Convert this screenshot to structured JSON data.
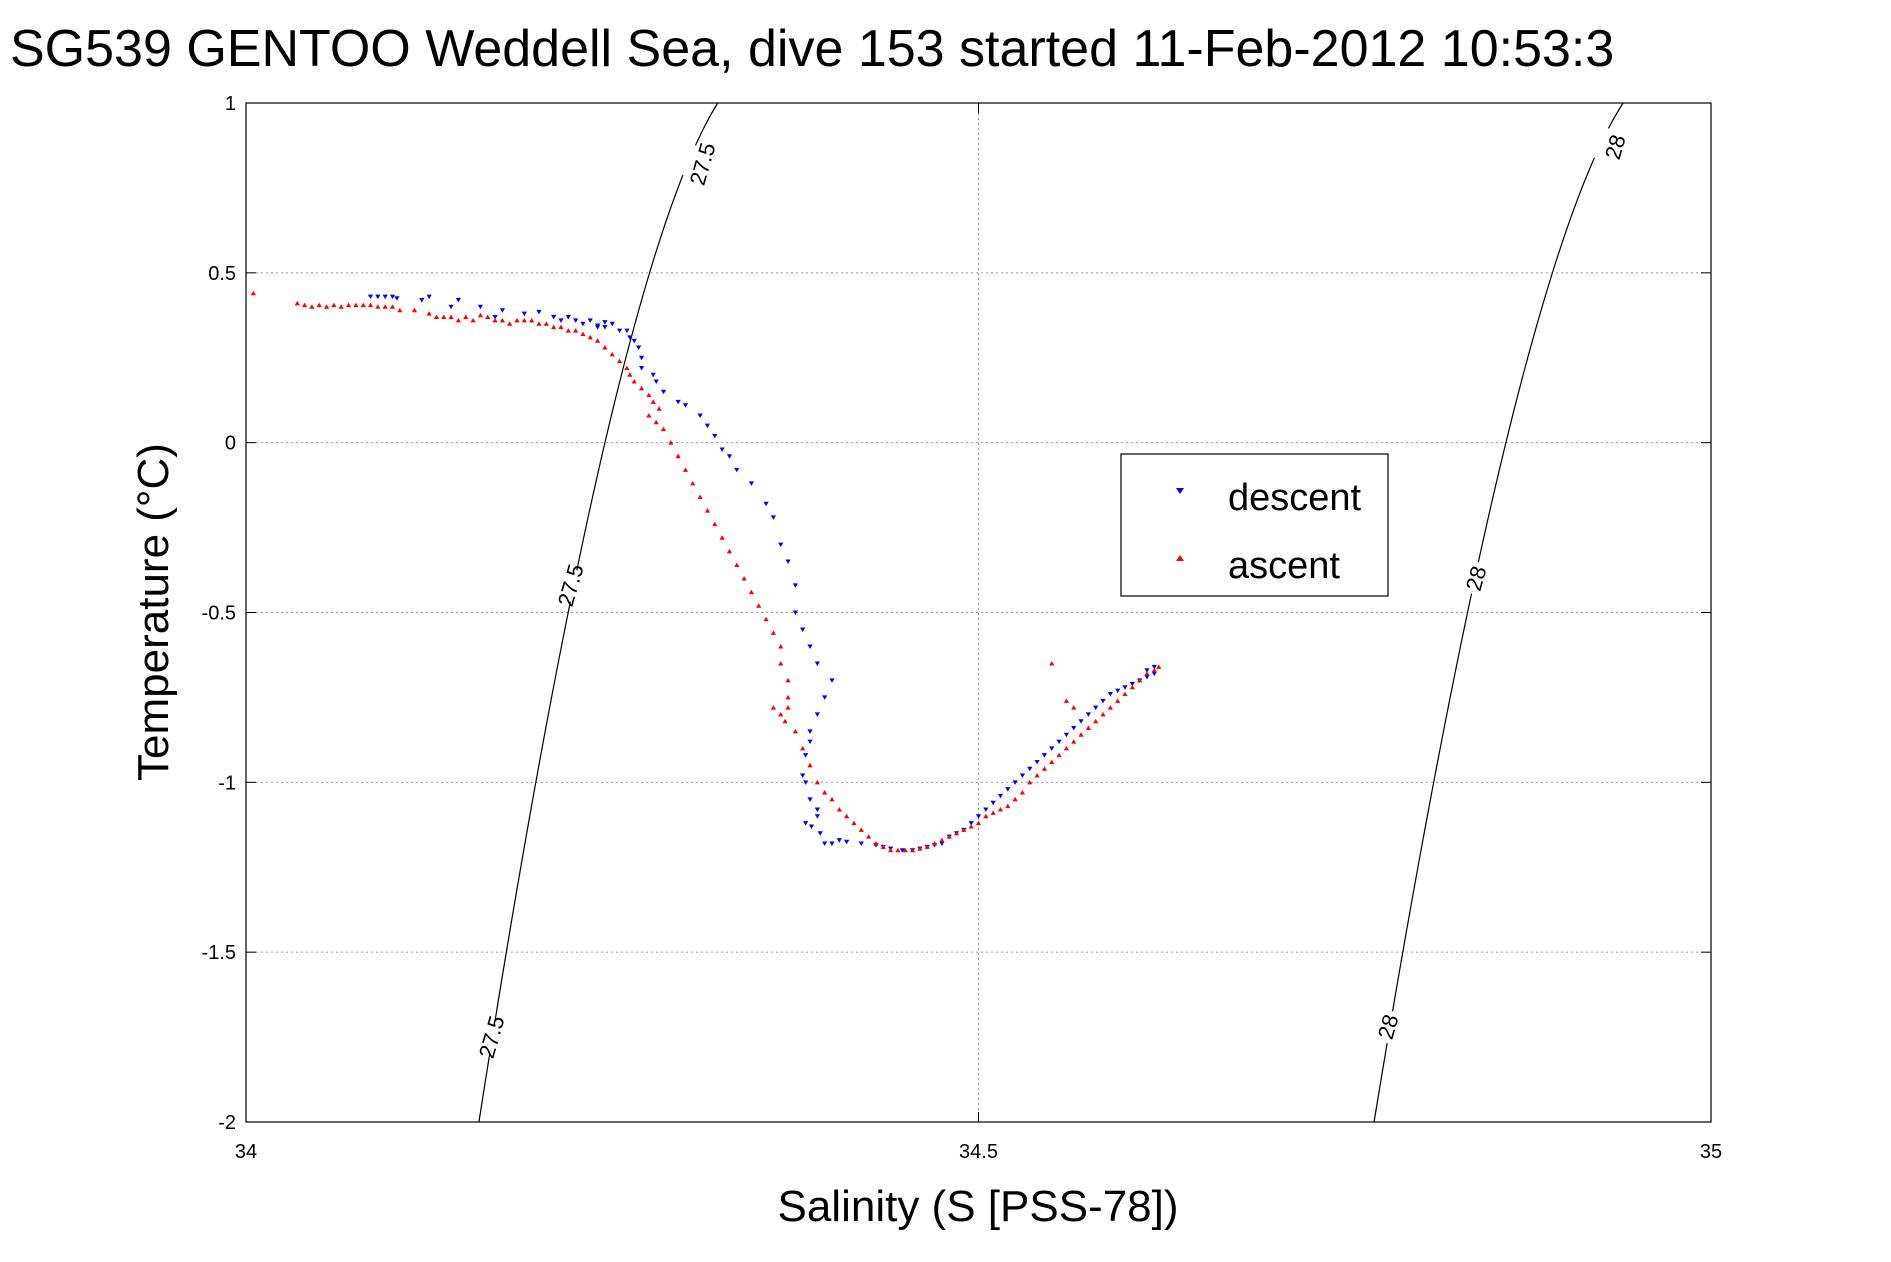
{
  "chart_data": {
    "type": "scatter",
    "title": "SG539 GENTOO Weddell Sea, dive 153 started 11-Feb-2012 10:53:3",
    "xlabel": "Salinity (S [PSS-78])",
    "ylabel": "Temperature (°C)",
    "xlim": [
      34,
      35
    ],
    "ylim": [
      -2,
      1
    ],
    "xticks": [
      34,
      34.5,
      35
    ],
    "xtick_labels": [
      "34",
      "34.5",
      "35"
    ],
    "yticks": [
      1,
      0.5,
      0,
      -0.5,
      -1,
      -1.5,
      -2
    ],
    "ytick_labels": [
      "1",
      "0.5",
      "0",
      "-0.5",
      "-1",
      "-1.5",
      "-2"
    ],
    "grid": true,
    "legend_position": "center-right",
    "series": [
      {
        "name": "descent",
        "color": "#0000ff",
        "marker": "triangle-down",
        "points": [
          [
            34.085,
            0.43
          ],
          [
            34.09,
            0.43
          ],
          [
            34.095,
            0.43
          ],
          [
            34.1,
            0.43
          ],
          [
            34.103,
            0.425
          ],
          [
            34.12,
            0.42
          ],
          [
            34.125,
            0.43
          ],
          [
            34.14,
            0.4
          ],
          [
            34.145,
            0.42
          ],
          [
            34.16,
            0.4
          ],
          [
            34.17,
            0.37
          ],
          [
            34.175,
            0.39
          ],
          [
            34.19,
            0.38
          ],
          [
            34.2,
            0.385
          ],
          [
            34.21,
            0.37
          ],
          [
            34.215,
            0.36
          ],
          [
            34.22,
            0.37
          ],
          [
            34.225,
            0.36
          ],
          [
            34.23,
            0.35
          ],
          [
            34.235,
            0.36
          ],
          [
            34.24,
            0.34
          ],
          [
            34.245,
            0.34
          ],
          [
            34.25,
            0.35
          ],
          [
            34.255,
            0.33
          ],
          [
            34.26,
            0.33
          ],
          [
            34.24,
            0.345
          ],
          [
            34.245,
            0.355
          ],
          [
            34.262,
            0.31
          ],
          [
            34.265,
            0.3
          ],
          [
            34.268,
            0.28
          ],
          [
            34.27,
            0.25
          ],
          [
            34.27,
            0.22
          ],
          [
            34.278,
            0.2
          ],
          [
            34.28,
            0.18
          ],
          [
            34.285,
            0.15
          ],
          [
            34.295,
            0.12
          ],
          [
            34.3,
            0.11
          ],
          [
            34.31,
            0.08
          ],
          [
            34.315,
            0.05
          ],
          [
            34.32,
            0.02
          ],
          [
            34.325,
            -0.02
          ],
          [
            34.33,
            -0.04
          ],
          [
            34.335,
            -0.08
          ],
          [
            34.345,
            -0.12
          ],
          [
            34.355,
            -0.18
          ],
          [
            34.36,
            -0.22
          ],
          [
            34.365,
            -0.3
          ],
          [
            34.37,
            -0.35
          ],
          [
            34.375,
            -0.42
          ],
          [
            34.375,
            -0.5
          ],
          [
            34.38,
            -0.55
          ],
          [
            34.385,
            -0.6
          ],
          [
            34.39,
            -0.65
          ],
          [
            34.4,
            -0.7
          ],
          [
            34.395,
            -0.75
          ],
          [
            34.39,
            -0.8
          ],
          [
            34.385,
            -0.85
          ],
          [
            34.385,
            -0.88
          ],
          [
            34.382,
            -0.92
          ],
          [
            34.38,
            -0.98
          ],
          [
            34.382,
            -1.0
          ],
          [
            34.385,
            -1.05
          ],
          [
            34.39,
            -1.08
          ],
          [
            34.39,
            -1.1
          ],
          [
            34.386,
            -1.13
          ],
          [
            34.382,
            -1.12
          ],
          [
            34.392,
            -1.15
          ],
          [
            34.395,
            -1.18
          ],
          [
            34.4,
            -1.18
          ],
          [
            34.405,
            -1.17
          ],
          [
            34.41,
            -1.175
          ],
          [
            34.42,
            -1.18
          ],
          [
            34.43,
            -1.185
          ],
          [
            34.435,
            -1.19
          ],
          [
            34.44,
            -1.195
          ],
          [
            34.448,
            -1.2
          ],
          [
            34.455,
            -1.2
          ],
          [
            34.46,
            -1.195
          ],
          [
            34.465,
            -1.19
          ],
          [
            34.47,
            -1.185
          ],
          [
            34.475,
            -1.18
          ],
          [
            34.48,
            -1.16
          ],
          [
            34.485,
            -1.15
          ],
          [
            34.49,
            -1.14
          ],
          [
            34.495,
            -1.12
          ],
          [
            34.5,
            -1.1
          ],
          [
            34.505,
            -1.08
          ],
          [
            34.51,
            -1.06
          ],
          [
            34.515,
            -1.04
          ],
          [
            34.52,
            -1.02
          ],
          [
            34.525,
            -1.0
          ],
          [
            34.53,
            -0.98
          ],
          [
            34.535,
            -0.96
          ],
          [
            34.54,
            -0.94
          ],
          [
            34.545,
            -0.92
          ],
          [
            34.55,
            -0.9
          ],
          [
            34.555,
            -0.88
          ],
          [
            34.56,
            -0.86
          ],
          [
            34.565,
            -0.84
          ],
          [
            34.57,
            -0.82
          ],
          [
            34.575,
            -0.8
          ],
          [
            34.58,
            -0.78
          ],
          [
            34.585,
            -0.76
          ],
          [
            34.59,
            -0.74
          ],
          [
            34.595,
            -0.73
          ],
          [
            34.6,
            -0.72
          ],
          [
            34.605,
            -0.71
          ],
          [
            34.61,
            -0.7
          ],
          [
            34.615,
            -0.69
          ],
          [
            34.62,
            -0.68
          ],
          [
            34.62,
            -0.66
          ],
          [
            34.615,
            -0.67
          ]
        ]
      },
      {
        "name": "ascent",
        "color": "#ff0000",
        "marker": "triangle-up",
        "points": [
          [
            34.005,
            0.44
          ],
          [
            34.035,
            0.41
          ],
          [
            34.04,
            0.405
          ],
          [
            34.045,
            0.4
          ],
          [
            34.05,
            0.405
          ],
          [
            34.055,
            0.4
          ],
          [
            34.06,
            0.405
          ],
          [
            34.065,
            0.4
          ],
          [
            34.07,
            0.405
          ],
          [
            34.075,
            0.405
          ],
          [
            34.08,
            0.405
          ],
          [
            34.085,
            0.405
          ],
          [
            34.09,
            0.4
          ],
          [
            34.095,
            0.4
          ],
          [
            34.1,
            0.4
          ],
          [
            34.105,
            0.39
          ],
          [
            34.115,
            0.39
          ],
          [
            34.125,
            0.38
          ],
          [
            34.13,
            0.37
          ],
          [
            34.135,
            0.37
          ],
          [
            34.14,
            0.37
          ],
          [
            34.145,
            0.36
          ],
          [
            34.15,
            0.37
          ],
          [
            34.155,
            0.36
          ],
          [
            34.16,
            0.375
          ],
          [
            34.165,
            0.37
          ],
          [
            34.17,
            0.36
          ],
          [
            34.175,
            0.36
          ],
          [
            34.18,
            0.35
          ],
          [
            34.185,
            0.36
          ],
          [
            34.19,
            0.36
          ],
          [
            34.195,
            0.36
          ],
          [
            34.2,
            0.35
          ],
          [
            34.205,
            0.35
          ],
          [
            34.21,
            0.34
          ],
          [
            34.215,
            0.34
          ],
          [
            34.22,
            0.33
          ],
          [
            34.225,
            0.33
          ],
          [
            34.23,
            0.32
          ],
          [
            34.235,
            0.31
          ],
          [
            34.24,
            0.3
          ],
          [
            34.245,
            0.28
          ],
          [
            34.25,
            0.26
          ],
          [
            34.255,
            0.24
          ],
          [
            34.26,
            0.22
          ],
          [
            34.262,
            0.2
          ],
          [
            34.265,
            0.18
          ],
          [
            34.27,
            0.16
          ],
          [
            34.275,
            0.14
          ],
          [
            34.278,
            0.12
          ],
          [
            34.282,
            0.1
          ],
          [
            34.275,
            0.08
          ],
          [
            34.28,
            0.06
          ],
          [
            34.285,
            0.04
          ],
          [
            34.29,
            0.0
          ],
          [
            34.295,
            -0.04
          ],
          [
            34.3,
            -0.08
          ],
          [
            34.305,
            -0.12
          ],
          [
            34.31,
            -0.16
          ],
          [
            34.315,
            -0.2
          ],
          [
            34.32,
            -0.24
          ],
          [
            34.325,
            -0.28
          ],
          [
            34.33,
            -0.32
          ],
          [
            34.335,
            -0.36
          ],
          [
            34.34,
            -0.4
          ],
          [
            34.345,
            -0.44
          ],
          [
            34.35,
            -0.48
          ],
          [
            34.355,
            -0.52
          ],
          [
            34.36,
            -0.56
          ],
          [
            34.365,
            -0.6
          ],
          [
            34.365,
            -0.65
          ],
          [
            34.37,
            -0.7
          ],
          [
            34.37,
            -0.75
          ],
          [
            34.36,
            -0.78
          ],
          [
            34.365,
            -0.8
          ],
          [
            34.368,
            -0.82
          ],
          [
            34.37,
            -0.78
          ],
          [
            34.375,
            -0.85
          ],
          [
            34.38,
            -0.9
          ],
          [
            34.385,
            -0.95
          ],
          [
            34.39,
            -1.0
          ],
          [
            34.395,
            -1.03
          ],
          [
            34.4,
            -1.05
          ],
          [
            34.405,
            -1.08
          ],
          [
            34.41,
            -1.1
          ],
          [
            34.415,
            -1.12
          ],
          [
            34.42,
            -1.14
          ],
          [
            34.425,
            -1.16
          ],
          [
            34.43,
            -1.18
          ],
          [
            34.435,
            -1.19
          ],
          [
            34.44,
            -1.2
          ],
          [
            34.445,
            -1.2
          ],
          [
            34.45,
            -1.2
          ],
          [
            34.455,
            -1.2
          ],
          [
            34.46,
            -1.195
          ],
          [
            34.465,
            -1.19
          ],
          [
            34.47,
            -1.18
          ],
          [
            34.475,
            -1.17
          ],
          [
            34.48,
            -1.16
          ],
          [
            34.485,
            -1.15
          ],
          [
            34.49,
            -1.14
          ],
          [
            34.495,
            -1.13
          ],
          [
            34.5,
            -1.12
          ],
          [
            34.505,
            -1.1
          ],
          [
            34.51,
            -1.09
          ],
          [
            34.515,
            -1.08
          ],
          [
            34.52,
            -1.07
          ],
          [
            34.525,
            -1.05
          ],
          [
            34.53,
            -1.03
          ],
          [
            34.535,
            -1.0
          ],
          [
            34.54,
            -0.98
          ],
          [
            34.545,
            -0.96
          ],
          [
            34.55,
            -0.94
          ],
          [
            34.555,
            -0.92
          ],
          [
            34.56,
            -0.9
          ],
          [
            34.565,
            -0.88
          ],
          [
            34.57,
            -0.86
          ],
          [
            34.575,
            -0.84
          ],
          [
            34.58,
            -0.82
          ],
          [
            34.585,
            -0.8
          ],
          [
            34.59,
            -0.78
          ],
          [
            34.595,
            -0.76
          ],
          [
            34.6,
            -0.74
          ],
          [
            34.605,
            -0.72
          ],
          [
            34.61,
            -0.7
          ],
          [
            34.615,
            -0.68
          ],
          [
            34.62,
            -0.67
          ],
          [
            34.623,
            -0.66
          ],
          [
            34.55,
            -0.65
          ],
          [
            34.56,
            -0.76
          ],
          [
            34.565,
            -0.78
          ]
        ]
      }
    ],
    "density_contours": [
      {
        "value": "27.5",
        "points": [
          [
            34.159,
            -2
          ],
          [
            34.245,
            0
          ],
          [
            34.322,
            1.0
          ]
        ],
        "label_positions": [
          [
            34.168,
            -1.75
          ],
          [
            34.222,
            -0.42
          ],
          [
            34.312,
            0.82
          ]
        ]
      },
      {
        "value": "28",
        "points": [
          [
            34.77,
            -2
          ],
          [
            34.86,
            0
          ],
          [
            34.94,
            1.0
          ]
        ],
        "label_positions": [
          [
            34.78,
            -1.72
          ],
          [
            34.84,
            -0.4
          ],
          [
            34.935,
            0.87
          ]
        ]
      }
    ]
  }
}
